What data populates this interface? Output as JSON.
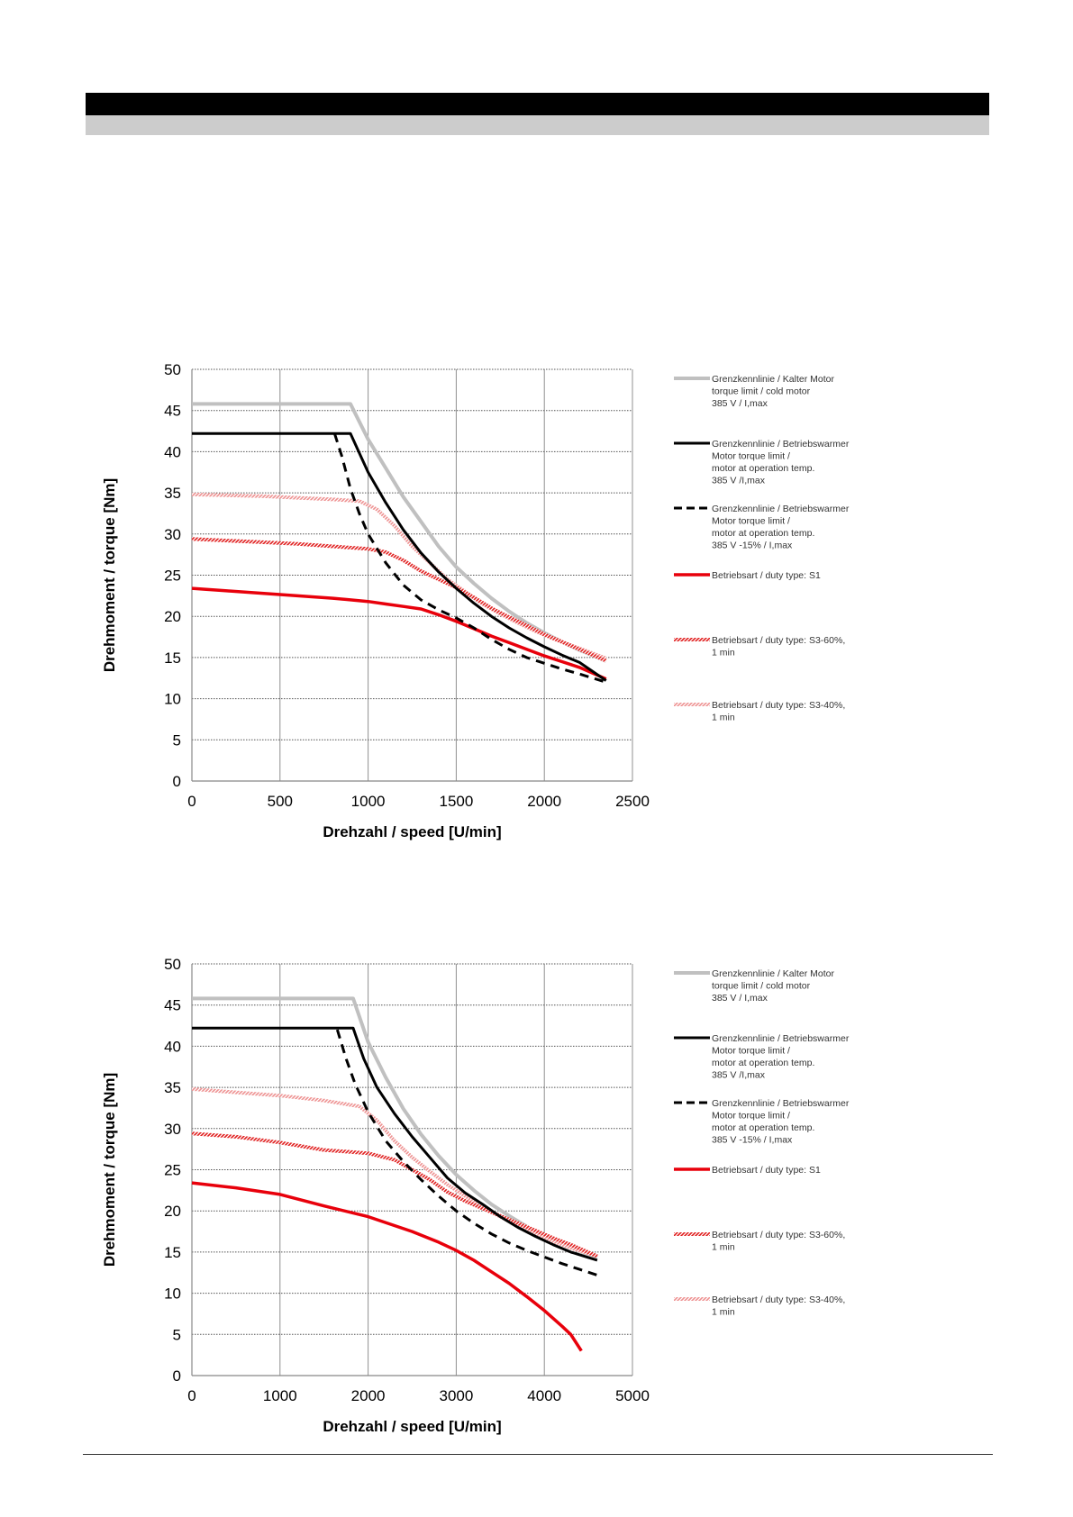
{
  "colors": {
    "cold": "#c0c0c0",
    "warm": "#000000",
    "warm_low": "#000000",
    "s1": "#e8000b",
    "s3_60": "#e01e1e",
    "s3_40": "#ee9090",
    "header": "#000000",
    "subheader": "#cccccc"
  },
  "chart_data": [
    {
      "type": "line",
      "xlabel": "Drehzahl / speed [U/min]",
      "ylabel": "Drehmoment / torque [Nm]",
      "xlim": [
        0,
        2500
      ],
      "ylim": [
        0,
        50
      ],
      "xticks": [
        0,
        500,
        1000,
        1500,
        2000,
        2500
      ],
      "yticks": [
        0,
        5,
        10,
        15,
        20,
        25,
        30,
        35,
        40,
        45,
        50
      ],
      "xtick_labels": [
        "0",
        "500",
        "1000",
        "1500",
        "2000",
        "2500"
      ],
      "ytick_labels": [
        "0",
        "5",
        "10",
        "15",
        "20",
        "25",
        "30",
        "35",
        "40",
        "45",
        "50"
      ],
      "grid": true,
      "legend": "right",
      "series": [
        {
          "key": "cold",
          "name": [
            "Grenzkennlinie / Kalter Motor",
            "torque limit / cold  motor",
            "385 V / I,max"
          ],
          "x": [
            0,
            900,
            1000,
            1100,
            1200,
            1300,
            1400,
            1500,
            1600,
            1700,
            1800,
            1900,
            2000,
            2100,
            2200,
            2350
          ],
          "y": [
            45.8,
            45.8,
            41.5,
            38.0,
            34.5,
            31.5,
            28.5,
            26.0,
            24.0,
            22.2,
            20.6,
            19.2,
            18.0,
            16.9,
            15.9,
            14.6
          ]
        },
        {
          "key": "warm",
          "name": [
            "Grenzkennlinie / Betriebswarmer",
            "Motor               torque limit /",
            "motor at operation temp.",
            "385 V /I,max"
          ],
          "x": [
            0,
            900,
            1000,
            1100,
            1200,
            1300,
            1400,
            1500,
            1600,
            1700,
            1800,
            1900,
            2000,
            2100,
            2200,
            2350
          ],
          "y": [
            42.2,
            42.2,
            37.5,
            33.8,
            30.5,
            27.7,
            25.4,
            23.4,
            21.6,
            20.0,
            18.6,
            17.4,
            16.3,
            15.3,
            14.4,
            12.2
          ]
        },
        {
          "key": "warm_low",
          "name": [
            "Grenzkennlinie / Betriebswarmer",
            "Motor               torque limit /",
            "motor at operation temp.",
            "385 V  -15% / I,max"
          ],
          "x": [
            810,
            850,
            900,
            950,
            1000,
            1100,
            1200,
            1300,
            1400,
            1500,
            1600,
            1700,
            1800,
            1900,
            2000,
            2100,
            2200,
            2350
          ],
          "y": [
            42.2,
            39.5,
            35.5,
            32.5,
            30.0,
            26.5,
            23.8,
            22.0,
            20.8,
            19.8,
            18.6,
            17.2,
            16.0,
            15.0,
            14.3,
            13.6,
            13.0,
            12.0
          ]
        },
        {
          "key": "s1",
          "name": [
            "Betriebsart / duty type: S1"
          ],
          "x": [
            0,
            200,
            400,
            600,
            800,
            1000,
            1100,
            1200,
            1300,
            1400,
            1500,
            1600,
            1700,
            1800,
            1900,
            2000,
            2100,
            2200,
            2350
          ],
          "y": [
            23.4,
            23.1,
            22.8,
            22.5,
            22.2,
            21.8,
            21.5,
            21.2,
            20.9,
            20.2,
            19.4,
            18.5,
            17.6,
            16.8,
            16.0,
            15.2,
            14.5,
            13.8,
            12.4
          ]
        },
        {
          "key": "s3_60",
          "name": [
            "Betriebsart / duty type: S3-60%,",
            "1 min"
          ],
          "x": [
            0,
            200,
            400,
            600,
            800,
            1000,
            1100,
            1200,
            1300,
            1400,
            1500,
            1600,
            1700,
            1800,
            1900,
            2000,
            2100,
            2200,
            2350
          ],
          "y": [
            29.4,
            29.2,
            29.0,
            28.8,
            28.5,
            28.2,
            27.8,
            26.8,
            25.5,
            24.5,
            23.5,
            22.3,
            21.0,
            19.9,
            18.9,
            17.8,
            16.9,
            16.0,
            14.6
          ]
        },
        {
          "key": "s3_40",
          "name": [
            "Betriebsart / duty type: S3-40%,",
            "1 min"
          ],
          "x": [
            0,
            200,
            400,
            600,
            800,
            950,
            1050,
            1150,
            1250,
            1350,
            1450,
            1550,
            1650,
            1750,
            1850,
            1950,
            2050,
            2150,
            2250,
            2350
          ],
          "y": [
            34.8,
            34.7,
            34.6,
            34.4,
            34.2,
            34.0,
            33.0,
            31.0,
            28.5,
            26.5,
            24.5,
            23.0,
            21.5,
            20.3,
            19.2,
            18.2,
            17.3,
            16.5,
            15.7,
            14.9
          ]
        }
      ]
    },
    {
      "type": "line",
      "xlabel": "Drehzahl / speed [U/min]",
      "ylabel": "Drehmoment / torque [Nm]",
      "xlim": [
        0,
        5000
      ],
      "ylim": [
        0,
        50
      ],
      "xticks": [
        0,
        1000,
        2000,
        3000,
        4000,
        5000
      ],
      "yticks": [
        0,
        5,
        10,
        15,
        20,
        25,
        30,
        35,
        40,
        45,
        50
      ],
      "xtick_labels": [
        "0",
        "1000",
        "2000",
        "3000",
        "4000",
        "5000"
      ],
      "ytick_labels": [
        "0",
        "5",
        "10",
        "15",
        "20",
        "25",
        "30",
        "35",
        "40",
        "45",
        "50"
      ],
      "grid": true,
      "legend": "right",
      "series": [
        {
          "key": "cold",
          "name": [
            "Grenzkennlinie / Kalter Motor",
            "torque limit / cold  motor",
            "385 V / I,max"
          ],
          "x": [
            0,
            1830,
            2000,
            2200,
            2400,
            2600,
            2800,
            3000,
            3200,
            3400,
            3600,
            3800,
            4000,
            4200,
            4400,
            4600
          ],
          "y": [
            45.8,
            45.8,
            40.5,
            36.2,
            32.4,
            29.3,
            26.7,
            24.4,
            22.5,
            20.8,
            19.4,
            18.1,
            17.0,
            16.0,
            15.1,
            14.3
          ]
        },
        {
          "key": "warm",
          "name": [
            "Grenzkennlinie / Betriebswarmer",
            "Motor               torque limit /",
            "motor at operation temp.",
            "385 V /I,max"
          ],
          "x": [
            0,
            1830,
            1950,
            2100,
            2300,
            2500,
            2700,
            2900,
            3100,
            3300,
            3500,
            3700,
            3900,
            4100,
            4300,
            4600
          ],
          "y": [
            42.2,
            42.2,
            38.5,
            35.0,
            31.8,
            29.0,
            26.5,
            24.0,
            22.2,
            20.8,
            19.3,
            18.0,
            16.9,
            15.9,
            15.0,
            14.0
          ]
        },
        {
          "key": "warm_low",
          "name": [
            "Grenzkennlinie / Betriebswarmer",
            "Motor               torque limit /",
            "motor at operation temp.",
            "385 V  -15% / I,max"
          ],
          "x": [
            1650,
            1750,
            1850,
            2000,
            2200,
            2400,
            2600,
            2800,
            3000,
            3200,
            3400,
            3600,
            3800,
            4000,
            4200,
            4400,
            4600
          ],
          "y": [
            42.0,
            38.5,
            35.5,
            32.0,
            28.5,
            26.0,
            23.8,
            21.8,
            20.0,
            18.5,
            17.2,
            16.1,
            15.2,
            14.4,
            13.6,
            12.9,
            12.2
          ]
        },
        {
          "key": "s1",
          "name": [
            "Betriebsart / duty type: S1"
          ],
          "x": [
            0,
            500,
            1000,
            1500,
            2000,
            2500,
            2800,
            3000,
            3200,
            3400,
            3600,
            3800,
            4000,
            4200,
            4300,
            4420
          ],
          "y": [
            23.4,
            22.8,
            22.0,
            20.6,
            19.3,
            17.5,
            16.2,
            15.2,
            14.0,
            12.6,
            11.2,
            9.6,
            7.9,
            6.0,
            5.0,
            3.0
          ]
        },
        {
          "key": "s3_60",
          "name": [
            "Betriebsart / duty type: S3-60%,",
            "1 min"
          ],
          "x": [
            0,
            500,
            1000,
            1500,
            2000,
            2300,
            2500,
            2700,
            2900,
            3100,
            3300,
            3500,
            3700,
            3900,
            4100,
            4300,
            4600
          ],
          "y": [
            29.4,
            29.0,
            28.3,
            27.4,
            27.0,
            26.2,
            25.0,
            23.8,
            22.3,
            21.2,
            20.3,
            19.4,
            18.5,
            17.6,
            16.7,
            15.9,
            14.5
          ]
        },
        {
          "key": "s3_40",
          "name": [
            "Betriebsart / duty type: S3-40%,",
            "1 min"
          ],
          "x": [
            0,
            500,
            1000,
            1500,
            1900,
            2100,
            2300,
            2500,
            2700,
            2900,
            3100,
            3300,
            3500,
            3700,
            3900,
            4100,
            4300,
            4600
          ],
          "y": [
            34.8,
            34.4,
            34.0,
            33.4,
            32.7,
            31.0,
            28.5,
            26.5,
            24.8,
            23.2,
            21.8,
            20.5,
            19.3,
            18.2,
            17.2,
            16.3,
            15.5,
            14.5
          ]
        }
      ]
    }
  ]
}
